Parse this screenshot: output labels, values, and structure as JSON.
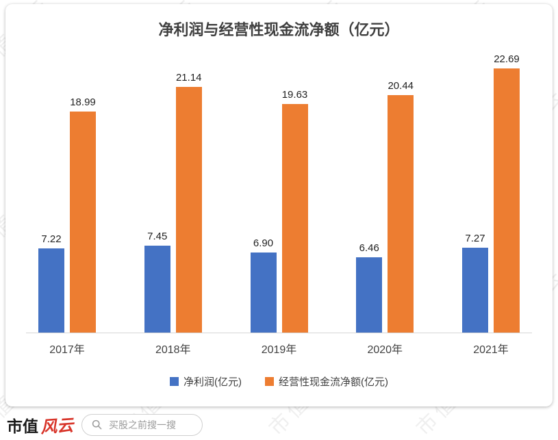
{
  "title": "净利润与经营性现金流净额（亿元）",
  "watermark": "市值风云",
  "chart_data": {
    "type": "bar",
    "categories": [
      "2017年",
      "2018年",
      "2019年",
      "2020年",
      "2021年"
    ],
    "series": [
      {
        "name": "净利润(亿元)",
        "color": "#4472C4",
        "values": [
          7.22,
          7.45,
          6.9,
          6.46,
          7.27
        ]
      },
      {
        "name": "经营性现金流净额(亿元)",
        "color": "#ED7D31",
        "values": [
          18.99,
          21.14,
          19.63,
          20.44,
          22.69
        ]
      }
    ],
    "ylim": [
      0,
      24
    ],
    "grid": false,
    "legend_position": "bottom",
    "value_labels": true,
    "value_label_format": "2-decimals"
  },
  "footer": {
    "logo_part1": "市值",
    "logo_part2": "风云",
    "search_placeholder": "买股之前搜一搜"
  }
}
